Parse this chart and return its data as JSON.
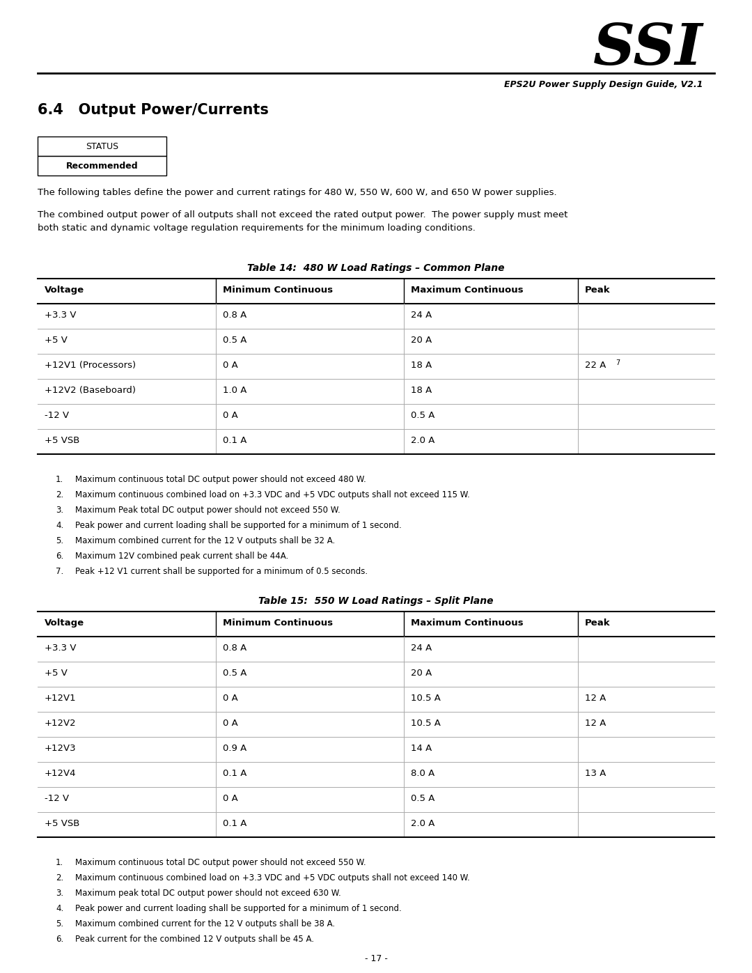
{
  "header_title": "SSI",
  "header_subtitle": "EPS2U Power Supply Design Guide, V2.1",
  "section_title": "6.4   Output Power/Currents",
  "status_label": "STATUS",
  "status_value": "Recommended",
  "intro_text1": "The following tables define the power and current ratings for 480 W, 550 W, 600 W, and 650 W power supplies.",
  "intro_text2": "The combined output power of all outputs shall not exceed the rated output power.  The power supply must meet\nboth static and dynamic voltage regulation requirements for the minimum loading conditions.",
  "table1_title": "Table 14:  480 W Load Ratings – Common Plane",
  "table1_headers": [
    "Voltage",
    "Minimum Continuous",
    "Maximum Continuous",
    "Peak"
  ],
  "table1_rows": [
    [
      "+3.3 V",
      "0.8 A",
      "24 A",
      ""
    ],
    [
      "+5 V",
      "0.5 A",
      "20 A",
      ""
    ],
    [
      "+12V1 (Processors)",
      "0 A",
      "18 A",
      "22 A"
    ],
    [
      "+12V2 (Baseboard)",
      "1.0 A",
      "18 A",
      ""
    ],
    [
      "-12 V",
      "0 A",
      "0.5 A",
      ""
    ],
    [
      "+5 VSB",
      "0.1 A",
      "2.0 A",
      ""
    ]
  ],
  "table1_notes": [
    "Maximum continuous total DC output power should not exceed 480 W.",
    "Maximum continuous combined load on +3.3 VDC and +5 VDC outputs shall not exceed 115 W.",
    "Maximum Peak total DC output power should not exceed 550 W.",
    "Peak power and current loading shall be supported for a minimum of 1 second.",
    "Maximum combined current for the 12 V outputs shall be 32 A.",
    "Maximum 12V combined peak current shall be 44A.",
    "Peak +12 V1 current shall be supported for a minimum of 0.5 seconds."
  ],
  "table2_title": "Table 15:  550 W Load Ratings – Split Plane",
  "table2_headers": [
    "Voltage",
    "Minimum Continuous",
    "Maximum Continuous",
    "Peak"
  ],
  "table2_rows": [
    [
      "+3.3 V",
      "0.8 A",
      "24 A",
      ""
    ],
    [
      "+5 V",
      "0.5 A",
      "20 A",
      ""
    ],
    [
      "+12V1",
      "0 A",
      "10.5 A",
      "12 A"
    ],
    [
      "+12V2",
      "0 A",
      "10.5 A",
      "12 A"
    ],
    [
      "+12V3",
      "0.9 A",
      "14 A",
      ""
    ],
    [
      "+12V4",
      "0.1 A",
      "8.0 A",
      "13 A"
    ],
    [
      "-12 V",
      "0 A",
      "0.5 A",
      ""
    ],
    [
      "+5 VSB",
      "0.1 A",
      "2.0 A",
      ""
    ]
  ],
  "table2_notes": [
    "Maximum continuous total DC output power should not exceed 550 W.",
    "Maximum continuous combined load on +3.3 VDC and +5 VDC outputs shall not exceed 140 W.",
    "Maximum peak total DC output power should not exceed 630 W.",
    "Peak power and current loading shall be supported for a minimum of 1 second.",
    "Maximum combined current for the 12 V outputs shall be 38 A.",
    "Peak current for the combined 12 V outputs shall be 45 A."
  ],
  "page_number": "- 17 -",
  "bg_color": "#ffffff",
  "text_color": "#000000",
  "line_color": "#000000",
  "table_line_color": "#aaaaaa"
}
